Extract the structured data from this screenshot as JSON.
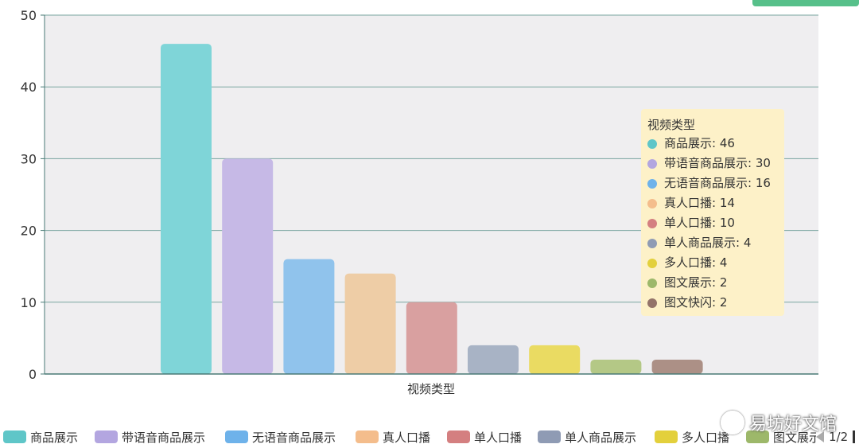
{
  "chart_data": {
    "type": "bar",
    "xlabel": "视频类型",
    "ylabel": "",
    "ylim": [
      0,
      50
    ],
    "yticks": [
      0,
      10,
      20,
      30,
      40,
      50
    ],
    "categories": [
      "视频类型"
    ],
    "series": [
      {
        "name": "商品展示",
        "values": [
          46
        ],
        "color": "#7fd5d8"
      },
      {
        "name": "带语音商品展示",
        "values": [
          30
        ],
        "color": "#c6b9e6"
      },
      {
        "name": "无语音商品展示",
        "values": [
          16
        ],
        "color": "#90c3ec"
      },
      {
        "name": "真人口播",
        "values": [
          14
        ],
        "color": "#eecda6"
      },
      {
        "name": "单人口播",
        "values": [
          10
        ],
        "color": "#d9a0a0"
      },
      {
        "name": "单人商品展示",
        "values": [
          4
        ],
        "color": "#a8b3c5"
      },
      {
        "name": "多人口播",
        "values": [
          4
        ],
        "color": "#eadb62"
      },
      {
        "name": "图文展示",
        "values": [
          2
        ],
        "color": "#b4c886"
      },
      {
        "name": "图文快闪",
        "values": [
          2
        ],
        "color": "#ac9086"
      }
    ],
    "grid": true,
    "legend": "bottom",
    "plot_background": "#efeef0"
  },
  "tooltip": {
    "title": "视频类型",
    "rows": [
      {
        "text": "商品展示: 46",
        "color": "#5fc6c8"
      },
      {
        "text": "带语音商品展示: 30",
        "color": "#b3a6e0"
      },
      {
        "text": "无语音商品展示: 16",
        "color": "#6eb2ea"
      },
      {
        "text": "真人口播: 14",
        "color": "#f4bd8c"
      },
      {
        "text": "单人口播: 10",
        "color": "#d47f80"
      },
      {
        "text": "单人商品展示: 4",
        "color": "#8f9bb4"
      },
      {
        "text": "多人口播: 4",
        "color": "#e3d03c"
      },
      {
        "text": "图文展示: 2",
        "color": "#9db86a"
      },
      {
        "text": "图文快闪: 2",
        "color": "#937369"
      }
    ]
  },
  "legend": {
    "items": [
      {
        "label": "商品展示",
        "color": "#5fc6c8"
      },
      {
        "label": "带语音商品展示",
        "color": "#b3a6e0"
      },
      {
        "label": "无语音商品展示",
        "color": "#6eb2ea"
      },
      {
        "label": "真人口播",
        "color": "#f4bd8c"
      },
      {
        "label": "单人口播",
        "color": "#d47f80"
      },
      {
        "label": "单人商品展示",
        "color": "#8f9bb4"
      },
      {
        "label": "多人口播",
        "color": "#e3d03c"
      },
      {
        "label": "图文展示",
        "color": "#9db86a"
      }
    ],
    "page": "1/2"
  },
  "watermark": "易坊好文馆"
}
